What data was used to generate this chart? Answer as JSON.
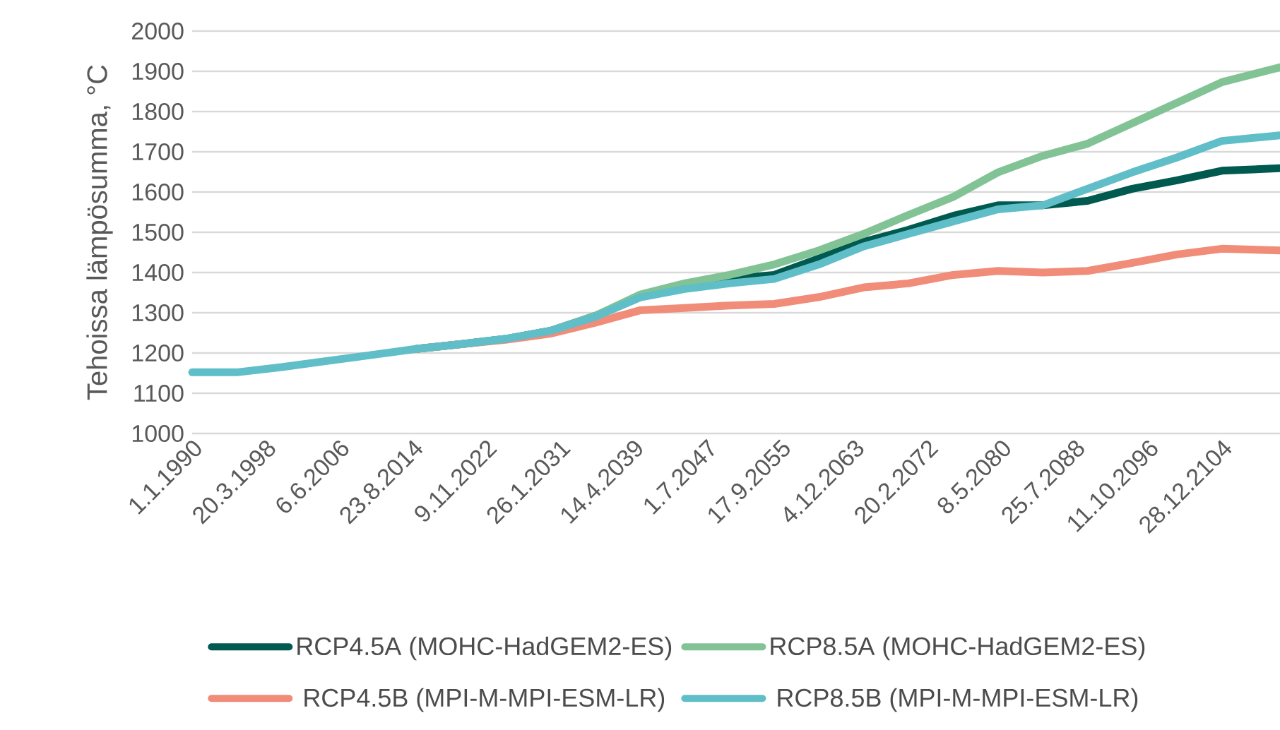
{
  "chart_data": {
    "type": "line",
    "ylabel": "Tehoissa lämpösumma, °C",
    "x": [
      "1990-01-01",
      "1995-01-01",
      "2000-01-01",
      "2005-01-01",
      "2010-01-01",
      "2015-01-01",
      "2020-01-01",
      "2025-01-01",
      "2030-01-01",
      "2035-01-01",
      "2040-01-01",
      "2045-01-01",
      "2050-01-01",
      "2055-01-01",
      "2060-01-01",
      "2065-01-01",
      "2070-01-01",
      "2075-01-01",
      "2080-01-01",
      "2085-01-01",
      "2090-01-01",
      "2095-01-01",
      "2100-01-01",
      "2105-01-01",
      "2111-06-30"
    ],
    "series": [
      {
        "name": "RCP4.5A (MOHC-HadGEM2-ES)",
        "color": "#005a50",
        "values": [
          null,
          null,
          null,
          null,
          null,
          1210,
          1222,
          1235,
          1255,
          1292,
          1340,
          1365,
          1384,
          1394,
          1435,
          1476,
          1506,
          1541,
          1567,
          1567,
          1578,
          1608,
          1629,
          1653,
          1659
        ]
      },
      {
        "name": "RCP8.5A (MOHC-HadGEM2-ES)",
        "color": "#82c396",
        "values": [
          null,
          null,
          null,
          null,
          null,
          1210,
          1222,
          1235,
          1255,
          1292,
          1345,
          1373,
          1394,
          1420,
          1455,
          1496,
          1543,
          1588,
          1649,
          1690,
          1720,
          1771,
          1822,
          1873,
          1910
        ]
      },
      {
        "name": "RCP4.5B (MPI-M-MPI-ESM-LR)",
        "color": "#f08c78",
        "values": [
          null,
          null,
          null,
          null,
          null,
          1210,
          1222,
          1233,
          1248,
          1275,
          1306,
          1312,
          1318,
          1322,
          1339,
          1363,
          1373,
          1394,
          1404,
          1400,
          1404,
          1424,
          1445,
          1459,
          1455
        ]
      },
      {
        "name": "RCP8.5B (MPI-M-MPI-ESM-LR)",
        "color": "#5fbec8",
        "values": [
          1152,
          1152,
          1165,
          1180,
          1195,
          1210,
          1222,
          1235,
          1255,
          1290,
          1338,
          1359,
          1373,
          1384,
          1420,
          1465,
          1496,
          1527,
          1557,
          1567,
          1608,
          1649,
          1686,
          1727,
          1741
        ]
      }
    ],
    "xlim": [
      "1990-01-01",
      "2111-07-01"
    ],
    "xticks": [
      {
        "value": "1990-01-01",
        "label": "1.1.1990"
      },
      {
        "value": "1998-03-20",
        "label": "20.3.1998"
      },
      {
        "value": "2006-06-06",
        "label": "6.6.2006"
      },
      {
        "value": "2014-08-23",
        "label": "23.8.2014"
      },
      {
        "value": "2022-11-09",
        "label": "9.11.2022"
      },
      {
        "value": "2031-01-26",
        "label": "26.1.2031"
      },
      {
        "value": "2039-04-14",
        "label": "14.4.2039"
      },
      {
        "value": "2047-07-01",
        "label": "1.7.2047"
      },
      {
        "value": "2055-09-17",
        "label": "17.9.2055"
      },
      {
        "value": "2063-12-04",
        "label": "4.12.2063"
      },
      {
        "value": "2072-02-20",
        "label": "20.2.2072"
      },
      {
        "value": "2080-05-08",
        "label": "8.5.2080"
      },
      {
        "value": "2088-07-25",
        "label": "25.7.2088"
      },
      {
        "value": "2096-10-11",
        "label": "11.10.2096"
      },
      {
        "value": "2104-12-28",
        "label": "28.12.2104"
      }
    ],
    "ylim": [
      1000,
      2000
    ],
    "yticks": [
      1000,
      1100,
      1200,
      1300,
      1400,
      1500,
      1600,
      1700,
      1800,
      1900,
      2000
    ],
    "grid": "y",
    "legend": "bottom"
  }
}
